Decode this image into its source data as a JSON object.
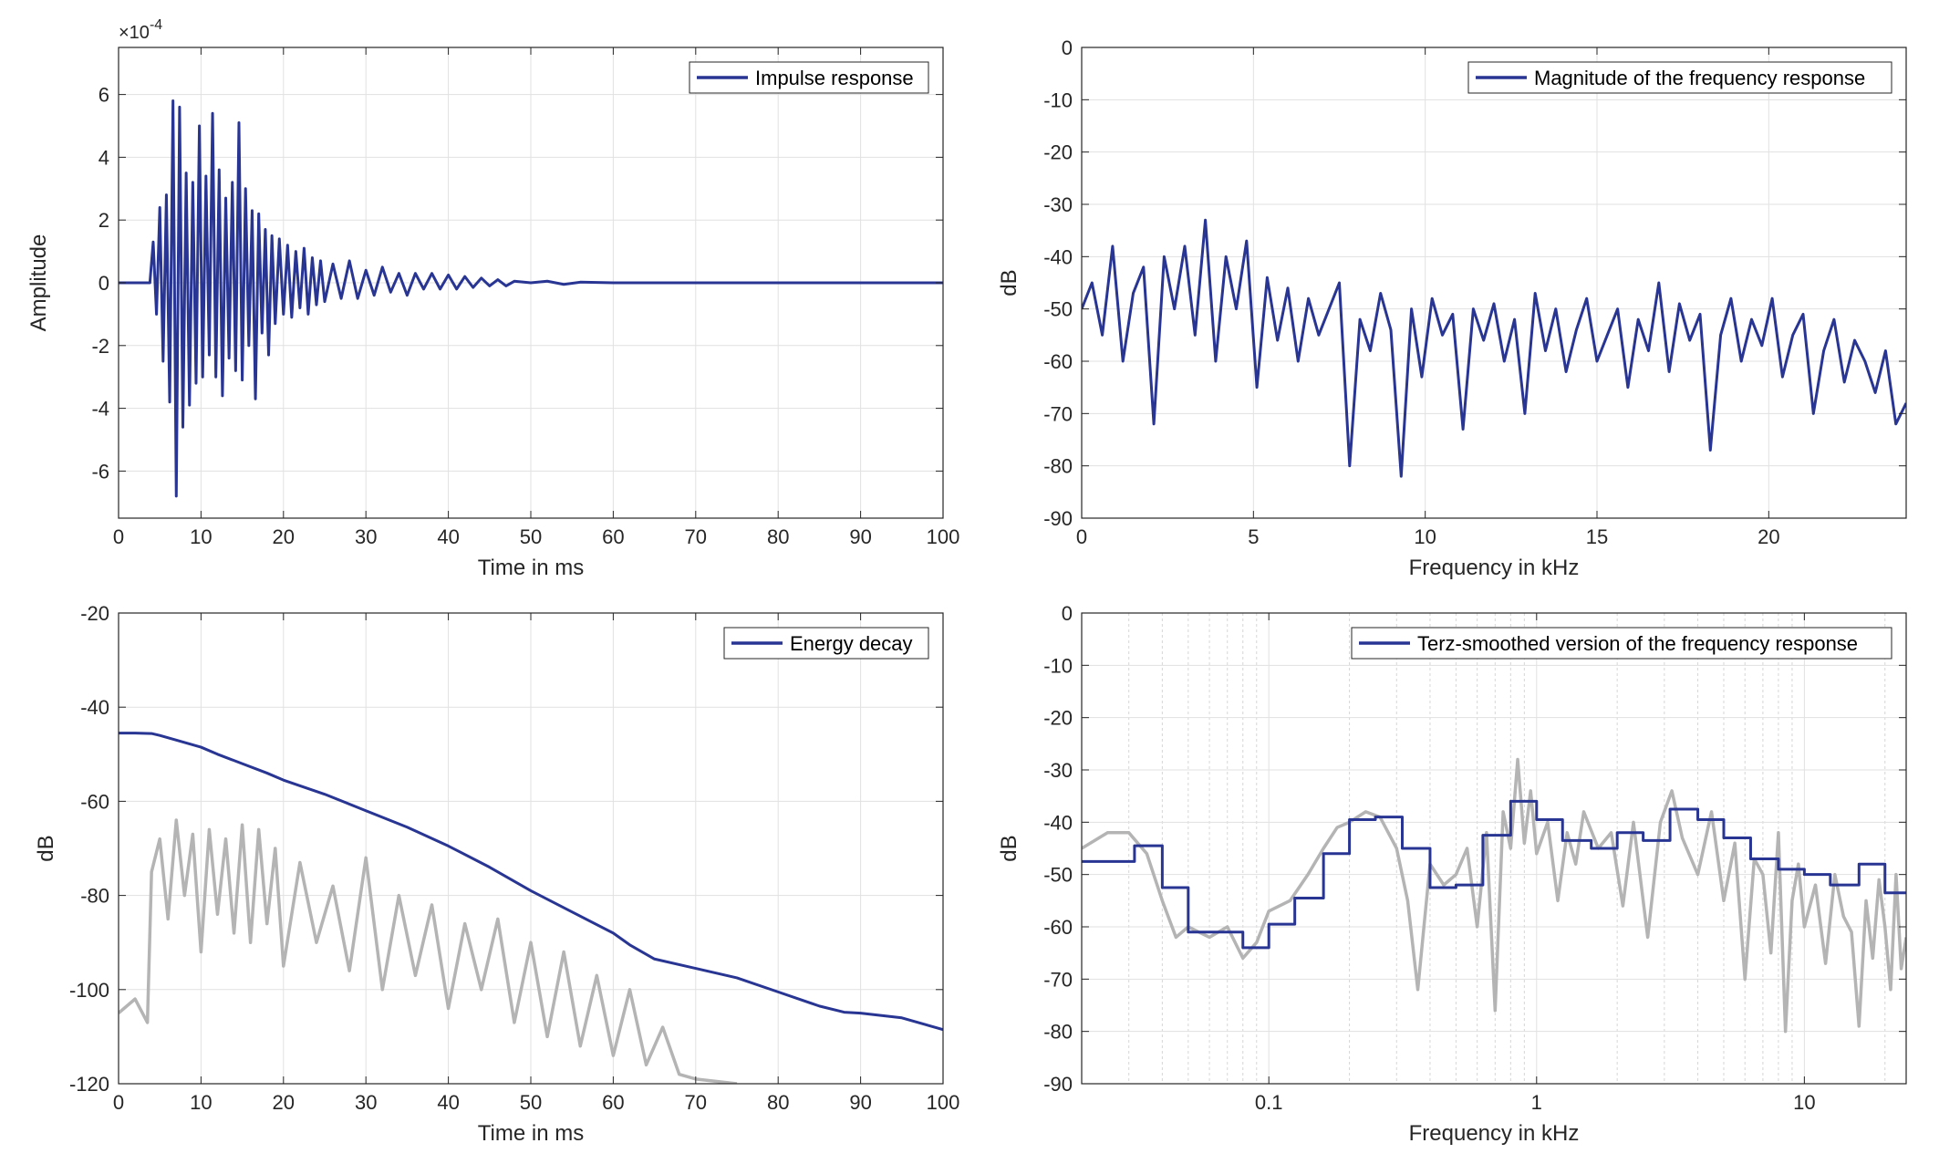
{
  "colors": {
    "series": "#283593",
    "secondary": "#b4b4b4",
    "grid": "#e1e1e1",
    "minor_grid": "#d6d6d6",
    "axis": "#262626"
  },
  "chart_data": [
    {
      "type": "line",
      "legend": [
        "Impulse response"
      ],
      "legend_position": "top-right",
      "xlabel": "Time in ms",
      "ylabel": "Amplitude",
      "exponent": "×10",
      "exponent_power": "-4",
      "xlim": [
        0,
        100
      ],
      "ylim": [
        -7.5,
        7.5
      ],
      "xticks": [
        0,
        10,
        20,
        30,
        40,
        50,
        60,
        70,
        80,
        90,
        100
      ],
      "xtick_labels": [
        "0",
        "10",
        "20",
        "30",
        "40",
        "50",
        "60",
        "70",
        "80",
        "90",
        "100"
      ],
      "yticks": [
        -6,
        -4,
        -2,
        0,
        2,
        4,
        6
      ],
      "ytick_labels": [
        "-6",
        "-4",
        "-2",
        "0",
        "2",
        "4",
        "6"
      ],
      "grid": true,
      "series": [
        {
          "name": "Impulse response",
          "x": [
            0,
            3.8,
            4.2,
            4.6,
            5.0,
            5.4,
            5.8,
            6.2,
            6.6,
            7.0,
            7.4,
            7.8,
            8.2,
            8.6,
            9.0,
            9.4,
            9.8,
            10.2,
            10.6,
            11.0,
            11.4,
            11.8,
            12.2,
            12.6,
            13.0,
            13.4,
            13.8,
            14.2,
            14.6,
            15.0,
            15.4,
            15.8,
            16.2,
            16.6,
            17.0,
            17.4,
            17.8,
            18.2,
            18.6,
            19.0,
            19.5,
            20.0,
            20.5,
            21.0,
            21.5,
            22.0,
            22.5,
            23.0,
            23.5,
            24.0,
            24.5,
            25.0,
            26.0,
            27.0,
            28.0,
            29.0,
            30.0,
            31.0,
            32.0,
            33.0,
            34.0,
            35.0,
            36.0,
            37.0,
            38.0,
            39.0,
            40.0,
            41.0,
            42.0,
            43.0,
            44.0,
            45.0,
            46.0,
            47.0,
            48.0,
            50.0,
            52.0,
            54.0,
            56.0,
            60.0,
            70.0,
            80.0,
            90.0,
            100.0
          ],
          "y": [
            0.0,
            0.0,
            1.3,
            -1.0,
            2.4,
            -2.5,
            2.8,
            -3.8,
            5.8,
            -6.8,
            5.6,
            -4.6,
            3.5,
            -3.9,
            3.2,
            -3.2,
            5.0,
            -3.0,
            3.4,
            -2.3,
            5.4,
            -3.0,
            3.6,
            -3.6,
            2.7,
            -2.4,
            3.2,
            -2.8,
            5.1,
            -3.1,
            3.0,
            -2.0,
            2.3,
            -3.7,
            2.2,
            -1.6,
            1.7,
            -2.3,
            1.5,
            -1.3,
            1.4,
            -1.0,
            1.2,
            -1.1,
            1.0,
            -0.8,
            1.1,
            -1.0,
            0.8,
            -0.7,
            0.7,
            -0.6,
            0.6,
            -0.5,
            0.7,
            -0.5,
            0.4,
            -0.4,
            0.5,
            -0.3,
            0.3,
            -0.4,
            0.3,
            -0.2,
            0.3,
            -0.2,
            0.25,
            -0.2,
            0.2,
            -0.15,
            0.15,
            -0.1,
            0.1,
            -0.1,
            0.05,
            0.0,
            0.05,
            -0.05,
            0.02,
            0.0,
            0.0,
            0.0,
            0.0,
            0.0
          ]
        }
      ]
    },
    {
      "type": "line",
      "legend": [
        "Magnitude of the frequency response"
      ],
      "legend_position": "top-right",
      "xlabel": "Frequency in kHz",
      "ylabel": "dB",
      "xlim": [
        0,
        24
      ],
      "ylim": [
        -90,
        0
      ],
      "xticks": [
        0,
        5,
        10,
        15,
        20
      ],
      "xtick_labels": [
        "0",
        "5",
        "10",
        "15",
        "20"
      ],
      "yticks": [
        0,
        -10,
        -20,
        -30,
        -40,
        -50,
        -60,
        -70,
        -80,
        -90
      ],
      "ytick_labels": [
        "0",
        "-10",
        "-20",
        "-30",
        "-40",
        "-50",
        "-60",
        "-70",
        "-80",
        "-90"
      ],
      "grid": true,
      "series": [
        {
          "name": "Magnitude of the frequency response",
          "x": [
            0,
            0.3,
            0.6,
            0.9,
            1.2,
            1.5,
            1.8,
            2.1,
            2.4,
            2.7,
            3.0,
            3.3,
            3.6,
            3.9,
            4.2,
            4.5,
            4.8,
            5.1,
            5.4,
            5.7,
            6.0,
            6.3,
            6.6,
            6.9,
            7.2,
            7.5,
            7.8,
            8.1,
            8.4,
            8.7,
            9.0,
            9.3,
            9.6,
            9.9,
            10.2,
            10.5,
            10.8,
            11.1,
            11.4,
            11.7,
            12.0,
            12.3,
            12.6,
            12.9,
            13.2,
            13.5,
            13.8,
            14.1,
            14.4,
            14.7,
            15.0,
            15.3,
            15.6,
            15.9,
            16.2,
            16.5,
            16.8,
            17.1,
            17.4,
            17.7,
            18.0,
            18.3,
            18.6,
            18.9,
            19.2,
            19.5,
            19.8,
            20.1,
            20.4,
            20.7,
            21.0,
            21.3,
            21.6,
            21.9,
            22.2,
            22.5,
            22.8,
            23.1,
            23.4,
            23.7,
            24.0
          ],
          "y": [
            -50,
            -45,
            -55,
            -38,
            -60,
            -47,
            -42,
            -72,
            -40,
            -50,
            -38,
            -55,
            -33,
            -60,
            -40,
            -50,
            -37,
            -65,
            -44,
            -56,
            -46,
            -60,
            -48,
            -55,
            -50,
            -45,
            -80,
            -52,
            -58,
            -47,
            -54,
            -82,
            -50,
            -63,
            -48,
            -55,
            -51,
            -73,
            -50,
            -56,
            -49,
            -60,
            -52,
            -70,
            -47,
            -58,
            -50,
            -62,
            -54,
            -48,
            -60,
            -55,
            -50,
            -65,
            -52,
            -58,
            -45,
            -62,
            -49,
            -56,
            -51,
            -77,
            -55,
            -48,
            -60,
            -52,
            -57,
            -48,
            -63,
            -55,
            -51,
            -70,
            -58,
            -52,
            -64,
            -56,
            -60,
            -66,
            -58,
            -72,
            -68
          ]
        }
      ]
    },
    {
      "type": "line",
      "legend": [
        "Energy decay"
      ],
      "legend_position": "top-right",
      "xlabel": "Time in ms",
      "ylabel": "dB",
      "xlim": [
        0,
        100
      ],
      "ylim": [
        -120,
        -20
      ],
      "xticks": [
        0,
        10,
        20,
        30,
        40,
        50,
        60,
        70,
        80,
        90,
        100
      ],
      "xtick_labels": [
        "0",
        "10",
        "20",
        "30",
        "40",
        "50",
        "60",
        "70",
        "80",
        "90",
        "100"
      ],
      "yticks": [
        -20,
        -40,
        -60,
        -80,
        -100,
        -120
      ],
      "ytick_labels": [
        "-20",
        "-40",
        "-60",
        "-80",
        "-100",
        "-120"
      ],
      "grid": true,
      "series": [
        {
          "name": "Energy decay",
          "x": [
            0,
            2,
            4,
            5,
            7,
            10,
            12,
            15,
            18,
            20,
            25,
            30,
            35,
            40,
            45,
            50,
            55,
            60,
            62,
            65,
            70,
            75,
            80,
            85,
            88,
            90,
            95,
            100
          ],
          "y": [
            -45.5,
            -45.5,
            -45.6,
            -46.0,
            -47.0,
            -48.5,
            -50.0,
            -52.0,
            -54.0,
            -55.5,
            -58.5,
            -62.0,
            -65.5,
            -69.5,
            -74.0,
            -79.0,
            -83.5,
            -88.0,
            -90.5,
            -93.5,
            -95.5,
            -97.5,
            -100.5,
            -103.5,
            -104.8,
            -105.0,
            -106.0,
            -108.5
          ]
        },
        {
          "x": [
            0,
            2,
            3.5,
            4,
            5,
            6,
            7,
            8,
            9,
            10,
            11,
            12,
            13,
            14,
            15,
            16,
            17,
            18,
            19,
            20,
            22,
            24,
            26,
            28,
            30,
            32,
            34,
            36,
            38,
            40,
            42,
            44,
            46,
            48,
            50,
            52,
            54,
            56,
            58,
            60,
            62,
            64,
            66,
            68,
            70,
            75
          ],
          "y": [
            -105,
            -102,
            -107,
            -75,
            -68,
            -85,
            -64,
            -80,
            -67,
            -92,
            -66,
            -84,
            -68,
            -88,
            -65,
            -90,
            -66,
            -86,
            -70,
            -95,
            -73,
            -90,
            -78,
            -96,
            -72,
            -100,
            -80,
            -97,
            -82,
            -104,
            -86,
            -100,
            -85,
            -107,
            -90,
            -110,
            -92,
            -112,
            -97,
            -114,
            -100,
            -116,
            -108,
            -118,
            -119,
            -120
          ]
        }
      ]
    },
    {
      "type": "line",
      "legend": [
        "Terz-smoothed version of the frequency response"
      ],
      "legend_position": "top-right",
      "xlabel": "Frequency in kHz",
      "ylabel": "dB",
      "xscale": "log",
      "xlim": [
        0.02,
        24
      ],
      "ylim": [
        -90,
        0
      ],
      "xticks": [
        0.1,
        1,
        10
      ],
      "xtick_labels": [
        "0.1",
        "1",
        "10"
      ],
      "yticks": [
        0,
        -10,
        -20,
        -30,
        -40,
        -50,
        -60,
        -70,
        -80,
        -90
      ],
      "ytick_labels": [
        "0",
        "-10",
        "-20",
        "-30",
        "-40",
        "-50",
        "-60",
        "-70",
        "-80",
        "-90"
      ],
      "grid": true,
      "series": [
        {
          "name": "Terz-smoothed version of the frequency response",
          "step": true,
          "x": [
            0.02,
            0.025,
            0.0315,
            0.04,
            0.05,
            0.063,
            0.08,
            0.1,
            0.125,
            0.16,
            0.2,
            0.25,
            0.315,
            0.4,
            0.5,
            0.63,
            0.8,
            1.0,
            1.25,
            1.6,
            2.0,
            2.5,
            3.15,
            4.0,
            5.0,
            6.3,
            8.0,
            10.0,
            12.5,
            16.0,
            20.0,
            24.0
          ],
          "y": [
            -47.5,
            -47.5,
            -44.5,
            -52.5,
            -61,
            -61,
            -64,
            -59.5,
            -54.5,
            -46,
            -39.5,
            -39,
            -45,
            -52.5,
            -52,
            -42.5,
            -36,
            -39.5,
            -43.5,
            -45,
            -42,
            -43.5,
            -37.5,
            -39.5,
            -43,
            -47,
            -49,
            -50,
            -52,
            -48,
            -53.5,
            -53.5
          ]
        },
        {
          "x": [
            0.02,
            0.025,
            0.03,
            0.035,
            0.04,
            0.045,
            0.05,
            0.06,
            0.07,
            0.08,
            0.09,
            0.1,
            0.12,
            0.14,
            0.16,
            0.18,
            0.2,
            0.23,
            0.26,
            0.3,
            0.33,
            0.36,
            0.4,
            0.45,
            0.5,
            0.55,
            0.6,
            0.65,
            0.7,
            0.75,
            0.8,
            0.85,
            0.9,
            0.95,
            1.0,
            1.1,
            1.2,
            1.3,
            1.4,
            1.5,
            1.7,
            1.9,
            2.1,
            2.3,
            2.6,
            2.9,
            3.2,
            3.5,
            4.0,
            4.5,
            5.0,
            5.5,
            6.0,
            6.5,
            7.0,
            7.5,
            8.0,
            8.5,
            9.0,
            9.5,
            10,
            11,
            12,
            13,
            14,
            15,
            16,
            17,
            18,
            19,
            20,
            21,
            22,
            23,
            24
          ],
          "y": [
            -45,
            -42,
            -42,
            -46,
            -55,
            -62,
            -60,
            -62,
            -60,
            -66,
            -63,
            -57,
            -55,
            -50,
            -45,
            -41,
            -40,
            -38,
            -39,
            -45,
            -55,
            -72,
            -48,
            -52,
            -50,
            -45,
            -60,
            -42,
            -76,
            -38,
            -45,
            -28,
            -44,
            -34,
            -46,
            -40,
            -55,
            -42,
            -48,
            -38,
            -45,
            -42,
            -56,
            -40,
            -62,
            -40,
            -34,
            -43,
            -50,
            -38,
            -55,
            -44,
            -70,
            -47,
            -50,
            -65,
            -42,
            -80,
            -55,
            -48,
            -60,
            -52,
            -67,
            -50,
            -58,
            -61,
            -79,
            -55,
            -66,
            -51,
            -60,
            -72,
            -50,
            -68,
            -62
          ]
        }
      ]
    }
  ]
}
